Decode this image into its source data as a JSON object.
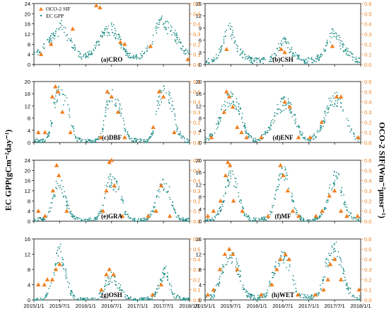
{
  "figure": {
    "left_axis_label": "EC GPP(gCm⁻²day⁻¹)",
    "right_axis_label": "OCO-2 SIF(Wm⁻²μmsr⁻¹)",
    "x_tick_labels": [
      "2015/1/1",
      "2015/7/1",
      "2016/1/1",
      "2016/7/1",
      "2017/1/1",
      "2017/7/1",
      "2018/1/1"
    ],
    "legend": {
      "sif": "OCO-2 SIF",
      "gpp": "EC GPP"
    },
    "colors": {
      "gpp": "#1a8a84",
      "sif": "#f07f1e",
      "axis": "#000000",
      "right_axis": "#f07f1e"
    }
  },
  "chart_data": [
    {
      "type": "scatter",
      "label": "(a)CRO",
      "gpp_ylim": [
        0,
        24
      ],
      "gpp_ticks": [
        0,
        4,
        8,
        12,
        16,
        20,
        24
      ],
      "sif_ylim": [
        0,
        0.6
      ],
      "sif_ticks": [
        0.0,
        0.1,
        0.2,
        0.3,
        0.4,
        0.5,
        0.6
      ],
      "gpp_x": [
        "2015-01-15",
        "2015-03-01",
        "2015-04-15",
        "2015-05-20",
        "2015-06-20",
        "2015-07-15",
        "2015-08-10",
        "2015-09-15",
        "2015-10-20",
        "2015-12-01",
        "2016-01-20",
        "2016-03-01",
        "2016-04-01",
        "2016-05-01",
        "2016-06-01",
        "2016-07-01",
        "2016-07-20",
        "2016-08-15",
        "2016-09-15",
        "2016-10-20",
        "2016-12-01",
        "2017-01-15",
        "2017-03-01",
        "2017-04-15",
        "2017-05-20",
        "2017-06-15",
        "2017-07-10",
        "2017-08-10",
        "2017-09-15",
        "2017-10-20",
        "2017-12-01"
      ],
      "gpp_y": [
        4,
        6,
        9,
        11,
        13,
        15,
        13,
        9,
        6,
        3,
        4,
        6,
        9,
        12,
        13,
        14,
        13,
        11,
        7,
        4,
        3,
        3,
        6,
        10,
        15,
        17,
        16,
        14,
        12,
        9,
        5
      ],
      "sif_x": [
        "2015-02-20",
        "2015-05-01",
        "2015-10-01",
        "2016-03-15",
        "2016-04-10",
        "2016-09-01",
        "2016-10-01",
        "2017-04-01",
        "2017-12-20"
      ],
      "sif_y": [
        0.1,
        0.2,
        0.35,
        0.58,
        0.56,
        0.22,
        0.2,
        0.18,
        0.05
      ]
    },
    {
      "type": "scatter",
      "label": "(b)CSH",
      "gpp_ylim": [
        0,
        15
      ],
      "gpp_ticks": [
        0,
        3,
        6,
        9,
        12,
        15
      ],
      "sif_ylim": [
        0,
        0.6
      ],
      "sif_ticks": [
        0.0,
        0.1,
        0.2,
        0.3,
        0.4,
        0.5,
        0.6
      ],
      "gpp_x": [
        "2015-01-15",
        "2015-03-01",
        "2015-04-15",
        "2015-05-15",
        "2015-06-10",
        "2015-07-05",
        "2015-08-01",
        "2015-09-01",
        "2015-10-15",
        "2015-12-01",
        "2016-02-01",
        "2016-04-01",
        "2016-05-15",
        "2016-06-15",
        "2016-07-15",
        "2016-08-15",
        "2016-10-01",
        "2016-12-01",
        "2017-02-01",
        "2017-04-01",
        "2017-05-15",
        "2017-06-15",
        "2017-07-15",
        "2017-08-15",
        "2017-10-01",
        "2017-12-01"
      ],
      "gpp_y": [
        1,
        1,
        3,
        6,
        9,
        8,
        5,
        3,
        2,
        1,
        1,
        1,
        3,
        5,
        6,
        4,
        2,
        1,
        1,
        2,
        5,
        8,
        7,
        5,
        3,
        1
      ],
      "sif_x": [
        "2015-06-01",
        "2016-06-20",
        "2016-07-15",
        "2017-06-15"
      ],
      "sif_y": [
        0.15,
        0.15,
        0.12,
        0.18
      ]
    },
    {
      "type": "scatter",
      "label": "(c)DBF",
      "gpp_ylim": [
        0,
        20
      ],
      "gpp_ticks": [
        0,
        4,
        8,
        12,
        16,
        20
      ],
      "sif_ylim": [
        0,
        0.6
      ],
      "sif_ticks": [
        0.0,
        0.1,
        0.2,
        0.3,
        0.4,
        0.5,
        0.6
      ],
      "gpp_x": [
        "2015-01-15",
        "2015-03-15",
        "2015-04-20",
        "2015-05-15",
        "2015-06-10",
        "2015-07-05",
        "2015-08-01",
        "2015-09-01",
        "2015-10-01",
        "2015-11-01",
        "2016-01-01",
        "2016-03-15",
        "2016-04-25",
        "2016-05-20",
        "2016-06-15",
        "2016-07-10",
        "2016-08-05",
        "2016-09-05",
        "2016-10-05",
        "2016-11-15",
        "2017-01-15",
        "2017-03-15",
        "2017-04-25",
        "2017-05-20",
        "2017-06-15",
        "2017-07-10",
        "2017-08-05",
        "2017-09-05",
        "2017-10-05",
        "2017-12-01"
      ],
      "gpp_y": [
        0.5,
        0.5,
        3,
        10,
        15,
        16,
        14,
        12,
        5,
        1,
        0.5,
        0.5,
        3,
        10,
        15,
        16,
        14,
        11,
        4,
        1,
        0.5,
        0.5,
        4,
        12,
        16,
        17,
        15,
        12,
        4,
        0.5
      ],
      "sif_x": [
        "2015-02-01",
        "2015-03-20",
        "2015-05-10",
        "2015-06-01",
        "2015-06-20",
        "2015-07-20",
        "2015-09-15",
        "2016-04-15",
        "2016-06-01",
        "2016-07-01",
        "2016-08-15",
        "2016-10-01",
        "2017-04-20",
        "2017-06-01",
        "2017-07-01",
        "2017-09-15"
      ],
      "sif_y": [
        0.1,
        0.1,
        0.45,
        0.55,
        0.5,
        0.3,
        0.1,
        0.05,
        0.5,
        0.45,
        0.3,
        0.05,
        0.15,
        0.5,
        0.45,
        0.1
      ]
    },
    {
      "type": "scatter",
      "label": "(d)ENF",
      "gpp_ylim": [
        0,
        20
      ],
      "gpp_ticks": [
        0,
        4,
        8,
        12,
        16,
        20
      ],
      "sif_ylim": [
        0,
        0.6
      ],
      "sif_ticks": [
        0.0,
        0.1,
        0.2,
        0.3,
        0.4,
        0.5,
        0.6
      ],
      "gpp_x": [
        "2015-01-15",
        "2015-03-01",
        "2015-04-15",
        "2015-05-15",
        "2015-06-15",
        "2015-07-15",
        "2015-08-15",
        "2015-09-15",
        "2015-10-15",
        "2015-12-01",
        "2016-01-15",
        "2016-03-01",
        "2016-04-15",
        "2016-05-15",
        "2016-06-15",
        "2016-07-15",
        "2016-08-15",
        "2016-09-15",
        "2016-10-15",
        "2016-12-01",
        "2017-01-15",
        "2017-03-01",
        "2017-04-15",
        "2017-05-15",
        "2017-06-15",
        "2017-07-15",
        "2017-08-15",
        "2017-09-15",
        "2017-10-15",
        "2017-12-01"
      ],
      "gpp_y": [
        1,
        3,
        8,
        12,
        14,
        14,
        12,
        9,
        4,
        1,
        1,
        3,
        6,
        10,
        12,
        13,
        12,
        9,
        5,
        1,
        1,
        3,
        7,
        12,
        14,
        14,
        13,
        9,
        5,
        1
      ],
      "sif_x": [
        "2015-02-15",
        "2015-05-15",
        "2015-06-01",
        "2015-06-20",
        "2015-07-15",
        "2015-08-15",
        "2015-09-15",
        "2015-10-20",
        "2016-02-01",
        "2016-07-15",
        "2016-08-20",
        "2016-10-20",
        "2017-01-10",
        "2017-04-01",
        "2017-07-15",
        "2017-08-15",
        "2017-12-15"
      ],
      "sif_y": [
        0.05,
        0.3,
        0.5,
        0.45,
        0.35,
        0.15,
        0.1,
        0.05,
        0.05,
        0.4,
        0.35,
        0.05,
        0.05,
        0.2,
        0.45,
        0.45,
        0.05
      ]
    },
    {
      "type": "scatter",
      "label": "(e)GRA",
      "gpp_ylim": [
        0,
        24
      ],
      "gpp_ticks": [
        0,
        4,
        8,
        12,
        16,
        20,
        24
      ],
      "sif_ylim": [
        0,
        0.6
      ],
      "sif_ticks": [
        0.0,
        0.1,
        0.2,
        0.3,
        0.4,
        0.5,
        0.6
      ],
      "gpp_x": [
        "2015-01-15",
        "2015-03-15",
        "2015-04-20",
        "2015-05-20",
        "2015-06-15",
        "2015-07-10",
        "2015-08-05",
        "2015-09-01",
        "2015-10-01",
        "2015-11-15",
        "2016-01-15",
        "2016-03-15",
        "2016-04-25",
        "2016-05-20",
        "2016-06-15",
        "2016-07-10",
        "2016-08-05",
        "2016-09-01",
        "2016-10-01",
        "2016-11-15",
        "2017-01-15",
        "2017-03-15",
        "2017-04-25",
        "2017-05-20",
        "2017-06-15",
        "2017-07-10",
        "2017-08-05",
        "2017-09-01",
        "2017-10-01",
        "2017-12-01"
      ],
      "gpp_y": [
        0.5,
        1,
        4,
        10,
        16,
        15,
        10,
        5,
        2,
        0.5,
        0.5,
        1,
        5,
        12,
        16,
        15,
        14,
        11,
        4,
        0.5,
        0.5,
        1,
        5,
        10,
        14,
        15,
        13,
        7,
        2,
        0.5
      ],
      "sif_x": [
        "2015-02-01",
        "2015-03-20",
        "2015-05-15",
        "2015-06-10",
        "2015-06-25",
        "2015-08-20",
        "2016-05-01",
        "2016-05-25",
        "2016-06-15",
        "2016-07-01",
        "2016-07-20",
        "2016-09-15",
        "2017-03-15",
        "2017-05-10",
        "2017-06-15",
        "2017-08-15"
      ],
      "sif_y": [
        0.1,
        0.05,
        0.3,
        0.55,
        0.45,
        0.1,
        0.1,
        0.3,
        0.58,
        0.6,
        0.35,
        0.05,
        0.05,
        0.1,
        0.35,
        0.05
      ]
    },
    {
      "type": "scatter",
      "label": "(f)MF",
      "gpp_ylim": [
        0,
        20
      ],
      "gpp_ticks": [
        0,
        4,
        8,
        12,
        16,
        20
      ],
      "sif_ylim": [
        0,
        0.6
      ],
      "sif_ticks": [
        0.0,
        0.1,
        0.2,
        0.3,
        0.4,
        0.5,
        0.6
      ],
      "gpp_x": [
        "2015-01-15",
        "2015-03-15",
        "2015-04-20",
        "2015-05-20",
        "2015-06-15",
        "2015-07-10",
        "2015-08-05",
        "2015-09-01",
        "2015-10-01",
        "2015-11-15",
        "2016-01-15",
        "2016-03-15",
        "2016-04-25",
        "2016-05-20",
        "2016-06-15",
        "2016-07-10",
        "2016-08-05",
        "2016-09-01",
        "2016-10-01",
        "2016-11-15",
        "2017-01-15",
        "2017-03-15",
        "2017-04-25",
        "2017-05-20",
        "2017-06-15",
        "2017-07-10",
        "2017-08-05",
        "2017-09-01",
        "2017-10-01",
        "2017-12-01"
      ],
      "gpp_y": [
        0.5,
        1,
        4,
        9,
        14,
        15,
        12,
        8,
        3,
        0.5,
        0.5,
        1,
        5,
        11,
        15,
        16,
        13,
        8,
        3,
        0.5,
        0.5,
        1,
        4,
        9,
        13,
        15,
        13,
        8,
        3,
        0.5
      ],
      "sif_x": [
        "2015-01-20",
        "2015-03-01",
        "2015-04-20",
        "2015-05-25",
        "2015-06-10",
        "2015-06-25",
        "2015-07-20",
        "2015-09-20",
        "2016-03-20",
        "2016-06-15",
        "2016-07-05",
        "2016-08-05",
        "2016-09-10",
        "2016-10-20",
        "2017-02-20",
        "2017-04-05",
        "2017-05-25",
        "2017-07-01",
        "2017-08-15",
        "2017-09-25",
        "2017-12-10"
      ],
      "sif_y": [
        0.05,
        0.1,
        0.2,
        0.45,
        0.58,
        0.55,
        0.2,
        0.1,
        0.05,
        0.55,
        0.45,
        0.3,
        0.1,
        0.05,
        0.05,
        0.1,
        0.25,
        0.3,
        0.1,
        0.05,
        0.05
      ]
    },
    {
      "type": "scatter",
      "label": "(g)OSH",
      "gpp_ylim": [
        0,
        16
      ],
      "gpp_ticks": [
        0,
        4,
        8,
        12,
        16
      ],
      "sif_ylim": [
        0,
        0.6
      ],
      "sif_ticks": [
        0.0,
        0.1,
        0.2,
        0.3,
        0.4,
        0.5,
        0.6
      ],
      "gpp_x": [
        "2015-01-15",
        "2015-03-01",
        "2015-04-15",
        "2015-05-15",
        "2015-06-10",
        "2015-07-05",
        "2015-08-01",
        "2015-08-25",
        "2015-09-20",
        "2015-10-20",
        "2016-01-01",
        "2016-03-15",
        "2016-05-01",
        "2016-06-01",
        "2016-07-01",
        "2016-08-01",
        "2016-09-01",
        "2016-10-01",
        "2016-12-01",
        "2017-03-01",
        "2017-05-01",
        "2017-06-15",
        "2017-07-15",
        "2017-08-15",
        "2017-09-15",
        "2017-12-01"
      ],
      "gpp_y": [
        0,
        0,
        2,
        6,
        11,
        13,
        9,
        5,
        2,
        0,
        0,
        0,
        2,
        5,
        6,
        5,
        3,
        1,
        0,
        0,
        1,
        5,
        8,
        4,
        1,
        0
      ],
      "sif_x": [
        "2015-02-01",
        "2015-03-15",
        "2015-04-05",
        "2015-05-10",
        "2015-06-05",
        "2015-07-01",
        "2016-04-20",
        "2016-05-25",
        "2016-06-15",
        "2016-07-15",
        "2017-04-15",
        "2017-06-15"
      ],
      "sif_y": [
        0.15,
        0.15,
        0.2,
        0.2,
        0.3,
        0.35,
        0.1,
        0.25,
        0.3,
        0.25,
        0.05,
        0.15
      ]
    },
    {
      "type": "scatter",
      "label": "(h)WET",
      "gpp_ylim": [
        0,
        16
      ],
      "gpp_ticks": [
        0,
        4,
        8,
        12,
        16
      ],
      "sif_ylim": [
        0,
        0.6
      ],
      "sif_ticks": [
        0.0,
        0.1,
        0.2,
        0.3,
        0.4,
        0.5,
        0.6
      ],
      "gpp_x": [
        "2015-01-15",
        "2015-03-01",
        "2015-04-01",
        "2015-05-01",
        "2015-06-01",
        "2015-07-01",
        "2015-08-01",
        "2015-09-01",
        "2015-10-01",
        "2015-11-01",
        "2016-01-01",
        "2016-03-01",
        "2016-04-01",
        "2016-05-01",
        "2016-06-01",
        "2016-07-01",
        "2016-08-01",
        "2016-09-01",
        "2016-10-01",
        "2016-11-01",
        "2017-01-01",
        "2017-03-01",
        "2017-04-01",
        "2017-05-01",
        "2017-06-01",
        "2017-07-01",
        "2017-08-01",
        "2017-09-01",
        "2017-10-01",
        "2017-12-01"
      ],
      "gpp_y": [
        0.5,
        1,
        4,
        8,
        11,
        12,
        10,
        7,
        3,
        1,
        0.5,
        1,
        4,
        8,
        10,
        11,
        10,
        7,
        3,
        1,
        0.5,
        1,
        4,
        9,
        12,
        14,
        11,
        7,
        3,
        0.5
      ],
      "sif_x": [
        "2015-01-20",
        "2015-03-01",
        "2015-04-15",
        "2015-05-20",
        "2015-06-20",
        "2015-07-15",
        "2015-08-15",
        "2016-02-01",
        "2016-04-15",
        "2016-05-20",
        "2016-06-15",
        "2016-07-20",
        "2016-08-15",
        "2016-10-15",
        "2017-02-15",
        "2017-04-15",
        "2017-05-15",
        "2017-06-01",
        "2017-07-01",
        "2017-08-15",
        "2017-12-20"
      ],
      "sif_y": [
        0.05,
        0.1,
        0.3,
        0.45,
        0.5,
        0.45,
        0.3,
        0.05,
        0.15,
        0.3,
        0.4,
        0.45,
        0.4,
        0.05,
        0.05,
        0.1,
        0.2,
        0.35,
        0.4,
        0.2,
        0.1
      ]
    }
  ]
}
